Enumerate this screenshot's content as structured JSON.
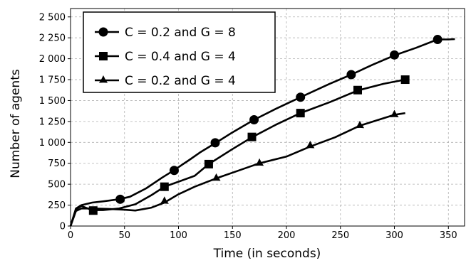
{
  "chart_data": {
    "type": "line",
    "xlabel": "Time (in seconds)",
    "ylabel": "Number of agents",
    "xlim": [
      0,
      365
    ],
    "ylim": [
      0,
      2600
    ],
    "xticks": [
      0,
      50,
      100,
      150,
      200,
      250,
      300,
      350
    ],
    "yticks": [
      0,
      250,
      500,
      750,
      1000,
      1250,
      1500,
      1750,
      2000,
      2250,
      2500
    ],
    "xtick_labels": [
      "0",
      "50",
      "100",
      "150",
      "200",
      "250",
      "300",
      "350"
    ],
    "ytick_labels": [
      "0",
      "250",
      "500",
      "750",
      "1 000",
      "1 250",
      "1 500",
      "1 750",
      "2 000",
      "2 250",
      "2 500"
    ],
    "grid": true,
    "legend": "top-left",
    "series": [
      {
        "name": "C = 0.2 and G = 8",
        "marker": "circle",
        "x": [
          0,
          5,
          10,
          20,
          30,
          45,
          55,
          70,
          85,
          95,
          110,
          120,
          134,
          150,
          170,
          190,
          213,
          240,
          260,
          280,
          300,
          320,
          340,
          350,
          356
        ],
        "y": [
          0,
          210,
          250,
          280,
          295,
          320,
          350,
          450,
          580,
          660,
          790,
          880,
          990,
          1120,
          1270,
          1400,
          1540,
          1700,
          1810,
          1930,
          2040,
          2130,
          2230,
          2230,
          2235
        ],
        "marker_x": [
          46,
          96,
          134,
          170,
          213,
          260,
          300,
          340
        ],
        "marker_y": [
          320,
          665,
          995,
          1270,
          1540,
          1810,
          2045,
          2230
        ]
      },
      {
        "name": "C = 0.4 and G = 4",
        "marker": "square",
        "x": [
          0,
          5,
          10,
          20,
          30,
          45,
          60,
          75,
          87,
          100,
          115,
          128,
          150,
          168,
          190,
          213,
          240,
          266,
          290,
          310,
          313
        ],
        "y": [
          0,
          200,
          240,
          190,
          190,
          210,
          260,
          370,
          470,
          530,
          600,
          740,
          920,
          1060,
          1210,
          1350,
          1480,
          1620,
          1700,
          1750,
          1755
        ],
        "marker_x": [
          21,
          87,
          128,
          168,
          213,
          266,
          310
        ],
        "marker_y": [
          185,
          470,
          740,
          1065,
          1350,
          1625,
          1750
        ]
      },
      {
        "name": "C = 0.2 and G = 4",
        "marker": "triangle",
        "x": [
          0,
          5,
          10,
          20,
          35,
          50,
          60,
          75,
          87,
          100,
          115,
          135,
          155,
          175,
          200,
          222,
          245,
          268,
          300,
          305,
          310
        ],
        "y": [
          0,
          180,
          210,
          210,
          205,
          195,
          185,
          220,
          280,
          380,
          470,
          570,
          660,
          750,
          830,
          950,
          1060,
          1200,
          1330,
          1340,
          1350
        ],
        "marker_x": [
          87,
          135,
          175,
          222,
          268,
          300
        ],
        "marker_y": [
          295,
          570,
          750,
          960,
          1200,
          1330
        ]
      }
    ]
  }
}
